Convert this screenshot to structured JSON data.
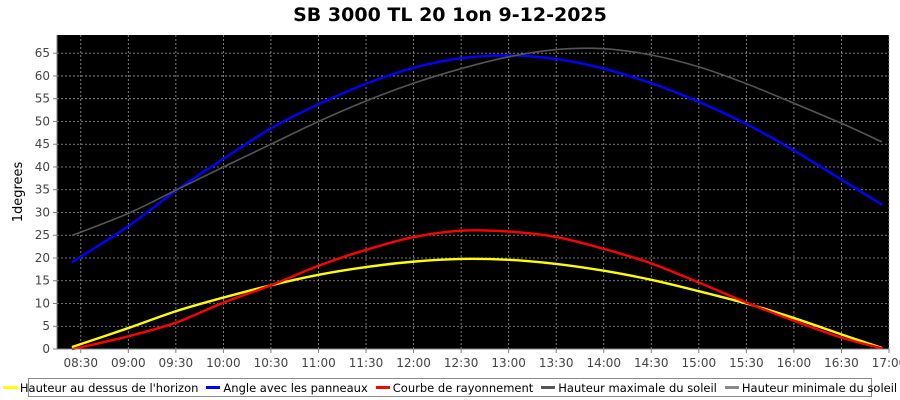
{
  "chart_data": {
    "type": "line",
    "title": "SB 3000 TL 20 1on 9-12-2025",
    "ylabel": "1degrees",
    "xlabel": "",
    "ylim": [
      0,
      69
    ],
    "xlim": [
      "08:15",
      "17:00"
    ],
    "grid": true,
    "background": "#000000",
    "legend_position": "bottom",
    "yticks": [
      0,
      5,
      10,
      15,
      20,
      25,
      30,
      35,
      40,
      45,
      50,
      55,
      60,
      65
    ],
    "xticks": [
      "08:30",
      "09:00",
      "09:30",
      "10:00",
      "10:30",
      "11:00",
      "11:30",
      "12:00",
      "12:30",
      "13:00",
      "13:30",
      "14:00",
      "14:30",
      "15:00",
      "15:30",
      "16:00",
      "16:30",
      "17:00"
    ],
    "series": [
      {
        "name": "Hauteur au dessus de l'horizon",
        "color": "#ffff00",
        "x": [
          "08:25",
          "09:00",
          "09:30",
          "10:00",
          "10:30",
          "11:00",
          "11:30",
          "12:00",
          "12:30",
          "13:00",
          "13:30",
          "14:00",
          "14:30",
          "15:00",
          "15:30",
          "16:00",
          "16:30",
          "16:55"
        ],
        "y": [
          0.5,
          4.6,
          8.3,
          11.3,
          14.0,
          16.3,
          18.0,
          19.2,
          19.8,
          19.6,
          18.7,
          17.2,
          15.2,
          12.7,
          10.0,
          6.8,
          3.2,
          0.3
        ]
      },
      {
        "name": "Angle avec les panneaux",
        "color": "#0000ff",
        "x": [
          "08:25",
          "09:00",
          "09:30",
          "10:00",
          "10:30",
          "11:00",
          "11:30",
          "12:00",
          "12:30",
          "13:00",
          "13:30",
          "14:00",
          "14:30",
          "15:00",
          "15:30",
          "16:00",
          "16:30",
          "16:55"
        ],
        "y": [
          19.2,
          27.0,
          34.8,
          41.8,
          48.5,
          53.8,
          58.3,
          61.8,
          63.9,
          64.5,
          63.7,
          61.6,
          58.4,
          54.3,
          49.4,
          43.6,
          37.2,
          31.8
        ]
      },
      {
        "name": "Courbe de rayonnement",
        "color": "#ff0000",
        "x": [
          "08:25",
          "09:00",
          "09:30",
          "10:00",
          "10:30",
          "11:00",
          "11:30",
          "12:00",
          "12:30",
          "13:00",
          "13:30",
          "14:00",
          "14:30",
          "15:00",
          "15:30",
          "16:00",
          "16:30",
          "16:55"
        ],
        "y": [
          0.0,
          2.8,
          5.8,
          10.2,
          14.0,
          18.3,
          21.8,
          24.6,
          26.0,
          25.8,
          24.6,
          22.0,
          18.8,
          14.6,
          10.2,
          6.2,
          2.5,
          0.2
        ]
      },
      {
        "name": "Hauteur maximale du soleil",
        "color": "#555555",
        "x": [
          "08:25",
          "09:00",
          "09:30",
          "10:00",
          "10:30",
          "11:00",
          "11:30",
          "12:00",
          "12:30",
          "13:00",
          "13:30",
          "14:00",
          "14:30",
          "15:00",
          "15:30",
          "16:00",
          "16:30",
          "16:55"
        ],
        "y": [
          25.0,
          29.8,
          34.9,
          40.0,
          45.0,
          50.0,
          54.5,
          58.4,
          61.6,
          64.2,
          65.8,
          66.0,
          64.6,
          62.0,
          58.3,
          54.0,
          49.6,
          45.6
        ]
      },
      {
        "name": "Hauteur minimale du soleil",
        "color": "#888888",
        "x": [],
        "y": []
      }
    ]
  }
}
